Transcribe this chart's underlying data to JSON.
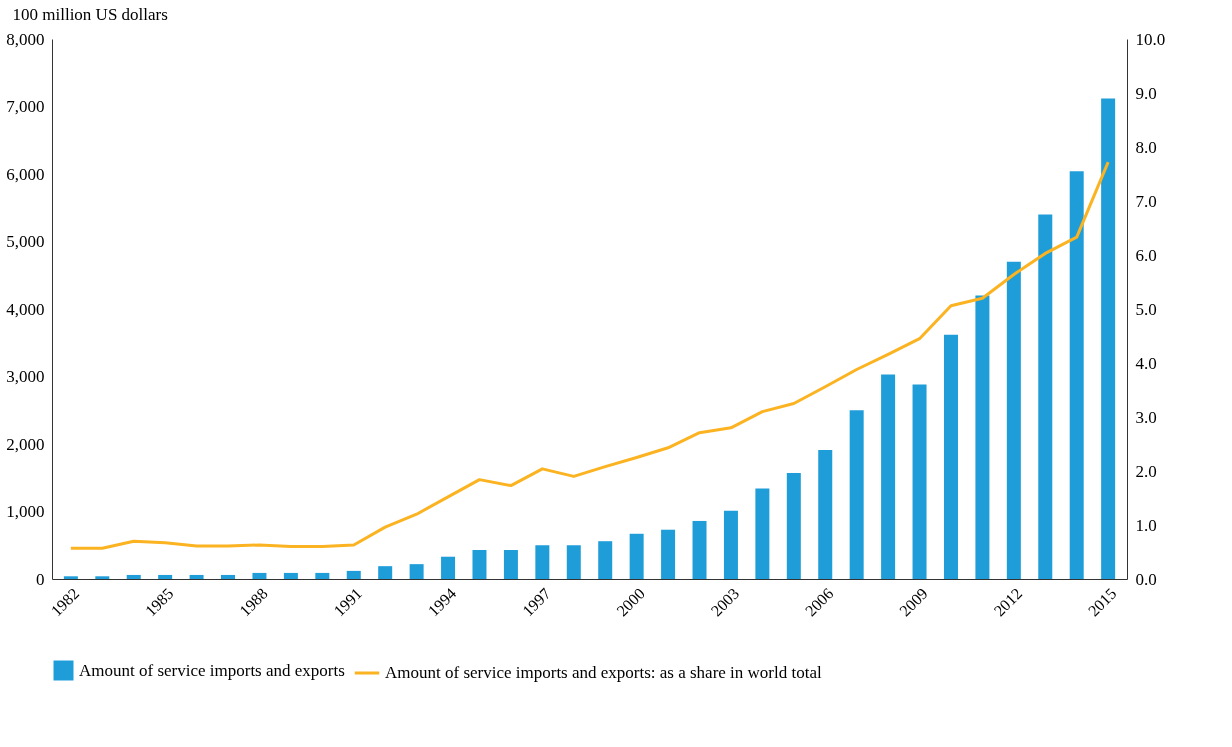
{
  "chart_data": {
    "type": "bar",
    "ylabel": "100 million US dollars",
    "categories": [
      "1982",
      null,
      null,
      "1985",
      null,
      null,
      "1988",
      null,
      null,
      "1991",
      null,
      null,
      "1994",
      null,
      null,
      "1997",
      null,
      null,
      "2000",
      null,
      null,
      "2003",
      null,
      null,
      "2006",
      null,
      null,
      "2009",
      null,
      null,
      "2012",
      null,
      null,
      "2015"
    ],
    "series": [
      {
        "name": "Amount of service imports and exports",
        "color": "#1e9dd8",
        "values": [
          40,
          40,
          60,
          60,
          60,
          60,
          90,
          90,
          90,
          120,
          190,
          220,
          330,
          430,
          430,
          500,
          500,
          560,
          670,
          730,
          860,
          1010,
          1340,
          1570,
          1910,
          2500,
          3030,
          2880,
          3620,
          4200,
          4700,
          5400,
          6040,
          7120
        ]
      },
      {
        "name": "Amount of service imports and exports: as a share in world total",
        "type": "line",
        "axis": "y2",
        "color": "#fbb321",
        "values": [
          0.57,
          0.57,
          0.7,
          0.67,
          0.61,
          0.61,
          0.63,
          0.6,
          0.6,
          0.63,
          0.96,
          1.2,
          1.52,
          1.84,
          1.73,
          2.04,
          1.9,
          2.08,
          2.25,
          2.43,
          2.71,
          2.8,
          3.1,
          3.25,
          3.56,
          3.88,
          4.16,
          4.45,
          5.06,
          5.2,
          5.64,
          6.03,
          6.33,
          7.72
        ]
      }
    ],
    "ylim": [
      0,
      8000
    ],
    "yticks": [
      0,
      {
        "value": 1000,
        "label": "1,000"
      },
      {
        "value": 2000,
        "label": "2,000"
      },
      {
        "value": 3000,
        "label": "3,000"
      },
      {
        "value": 4000,
        "label": "4,000"
      },
      {
        "value": 5000,
        "label": "5,000"
      },
      {
        "value": 6000,
        "label": "6,000"
      },
      {
        "value": 7000,
        "label": "7,000"
      },
      {
        "value": 8000,
        "label": "8,000"
      }
    ],
    "y2lim": [
      0,
      10
    ],
    "y2ticks": [
      {
        "value": 0,
        "label": "0.0"
      },
      {
        "value": 1,
        "label": "1.0"
      },
      {
        "value": 2,
        "label": "2.0"
      },
      {
        "value": 3,
        "label": "3.0"
      },
      {
        "value": 4,
        "label": "4.0"
      },
      {
        "value": 5,
        "label": "5.0"
      },
      {
        "value": 6,
        "label": "6.0"
      },
      {
        "value": 7,
        "label": "7.0"
      },
      {
        "value": 8,
        "label": "8.0"
      },
      {
        "value": 9,
        "label": "9.0"
      },
      {
        "value": 10,
        "label": "10.0"
      }
    ],
    "grid": false,
    "legend": "bottom",
    "marker": "none",
    "line_style": "solid"
  }
}
